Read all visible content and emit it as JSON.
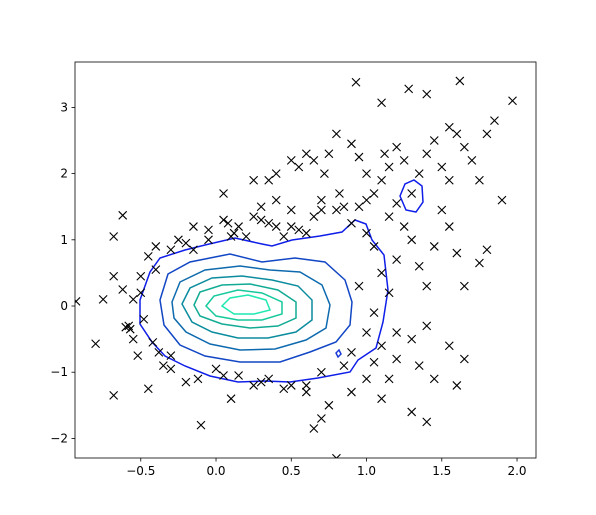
{
  "chart_data": {
    "type": "scatter",
    "x": [
      -0.93,
      -0.8,
      -0.75,
      -0.68,
      -0.68,
      -0.68,
      -0.62,
      -0.6,
      -0.57,
      -0.55,
      -0.52,
      -0.5,
      -0.5,
      -0.48,
      -0.45,
      -0.45,
      -0.4,
      -0.38,
      -0.35,
      -0.3,
      -0.25,
      -0.2,
      -0.15,
      -0.12,
      -0.2,
      -0.1,
      -0.05,
      0.0,
      0.05,
      0.08,
      0.1,
      0.12,
      0.15,
      0.2,
      0.25,
      0.3,
      0.35,
      0.4,
      0.45,
      0.5,
      0.55,
      0.55,
      0.6,
      0.65,
      0.7,
      0.72,
      0.75,
      0.8,
      0.82,
      0.85,
      0.9,
      0.95,
      1.0,
      0.95,
      1.0,
      1.05,
      1.1,
      1.12,
      1.15,
      1.2,
      1.25,
      1.3,
      1.35,
      1.4,
      1.45,
      1.5,
      1.55,
      1.6,
      1.65,
      1.7,
      1.75,
      1.8,
      1.85,
      1.9,
      1.97,
      1.62,
      1.28,
      0.93,
      1.1,
      1.4,
      1.55,
      1.25,
      1.3,
      1.35,
      1.4,
      1.45,
      1.5,
      1.55,
      1.6,
      1.65,
      1.75,
      1.8,
      1.2,
      1.1,
      1.15,
      1.05,
      1.0,
      1.1,
      1.2,
      1.3,
      1.35,
      1.4,
      1.45,
      1.55,
      1.6,
      1.65,
      1.3,
      1.4,
      1.1,
      1.0,
      0.9,
      0.8,
      0.75,
      0.7,
      0.65,
      0.6,
      0.5,
      0.45,
      0.35,
      0.25,
      0.15,
      0.6,
      0.9,
      1.05,
      1.15,
      1.2,
      0.95,
      1.05,
      1.15,
      1.2,
      1.0,
      0.9,
      0.8,
      0.7,
      0.6,
      0.5,
      0.4,
      0.3,
      0.1,
      0.05,
      -0.05,
      -0.15,
      -0.3,
      -0.4,
      -0.55,
      -0.62,
      -0.58,
      -0.42,
      -0.3,
      0.05,
      0.3,
      0.7,
      0.85,
      0.4,
      0.5,
      0.35,
      0.25,
      0.65
    ],
    "values": [
      0.07,
      -0.57,
      0.1,
      1.05,
      0.45,
      -1.35,
      1.37,
      -0.32,
      -0.35,
      -0.5,
      -0.75,
      0.45,
      0.2,
      -0.2,
      -1.25,
      0.75,
      0.9,
      -0.7,
      -0.9,
      -0.75,
      1.0,
      0.95,
      1.2,
      -1.1,
      -1.15,
      -1.8,
      1.15,
      -0.95,
      1.3,
      1.25,
      -1.4,
      1.1,
      1.2,
      1.05,
      1.35,
      1.3,
      1.25,
      1.2,
      1.05,
      1.2,
      1.15,
      2.1,
      2.3,
      1.35,
      1.6,
      2.0,
      2.3,
      2.6,
      1.7,
      1.5,
      2.45,
      2.25,
      2.0,
      1.5,
      1.6,
      1.7,
      1.9,
      2.3,
      2.1,
      2.4,
      2.2,
      1.7,
      2.0,
      2.3,
      2.5,
      2.1,
      1.9,
      2.6,
      2.4,
      2.2,
      1.9,
      2.6,
      2.8,
      1.6,
      3.1,
      3.4,
      3.28,
      3.38,
      3.07,
      3.2,
      2.7,
      1.2,
      1.0,
      0.6,
      0.3,
      0.9,
      1.45,
      1.2,
      0.8,
      0.3,
      0.65,
      0.85,
      0.7,
      0.5,
      0.2,
      -0.1,
      -0.4,
      -0.6,
      -0.8,
      -0.5,
      -0.9,
      -0.3,
      -1.1,
      -0.6,
      -1.2,
      -0.8,
      -1.6,
      -1.75,
      -1.4,
      -1.1,
      -1.3,
      -2.3,
      -1.5,
      -1.7,
      -1.85,
      -1.3,
      -1.2,
      -1.25,
      -1.1,
      -1.2,
      -1.05,
      -1.2,
      -0.7,
      -0.85,
      -1.1,
      -0.4,
      0.3,
      0.9,
      1.35,
      1.55,
      1.1,
      1.25,
      1.45,
      1.45,
      1.1,
      1.45,
      1.6,
      1.5,
      1.05,
      1.7,
      1.0,
      0.85,
      0.85,
      0.55,
      0.1,
      0.25,
      -0.3,
      -0.55,
      -0.95,
      -1.05,
      -1.15,
      -1.0,
      -0.9,
      2.0,
      2.2,
      1.9,
      1.9,
      2.2
    ],
    "color": "#000000",
    "xlim": [
      -0.937,
      2.126
    ],
    "ylim": [
      -2.296,
      3.686
    ],
    "xticks": [
      {
        "value": -0.5,
        "label": "−0.5"
      },
      {
        "value": 0.0,
        "label": "0.0"
      },
      0.5,
      {
        "value": 1.0,
        "label": "1.0"
      },
      1.5,
      {
        "value": 2.0,
        "label": "2.0"
      }
    ],
    "yticks": [
      {
        "value": -2,
        "label": "−2"
      },
      {
        "value": -1,
        "label": "−1"
      },
      0,
      1,
      2,
      3
    ]
  }
}
